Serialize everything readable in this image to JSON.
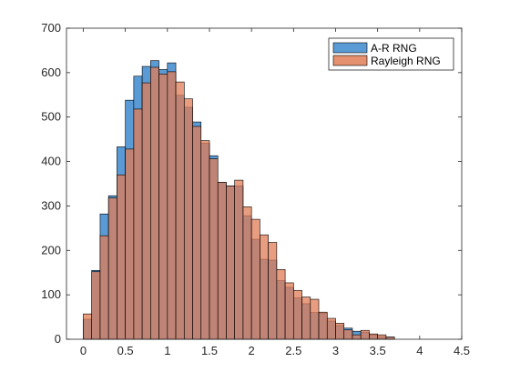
{
  "chart_data": {
    "type": "bar",
    "subtype": "overlaid-histogram",
    "title": "",
    "xlabel": "",
    "ylabel": "",
    "xlim": [
      -0.2,
      4.5
    ],
    "ylim": [
      0,
      700
    ],
    "xticks": [
      "0",
      "0.5",
      "1",
      "1.5",
      "2",
      "2.5",
      "3",
      "3.5",
      "4",
      "4.5"
    ],
    "yticks": [
      "0",
      "100",
      "200",
      "300",
      "400",
      "500",
      "600",
      "700"
    ],
    "bin_width": 0.1,
    "bin_centers": [
      0.05,
      0.15,
      0.25,
      0.35,
      0.45,
      0.55,
      0.65,
      0.75,
      0.85,
      0.95,
      1.05,
      1.15,
      1.25,
      1.35,
      1.45,
      1.55,
      1.65,
      1.75,
      1.85,
      1.95,
      2.05,
      2.15,
      2.25,
      2.35,
      2.45,
      2.55,
      2.65,
      2.75,
      2.85,
      2.95,
      3.05,
      3.15,
      3.25,
      3.35,
      3.45,
      3.55,
      3.65
    ],
    "series": [
      {
        "name": "A-R RNG",
        "color": "#5B9BD5",
        "values": [
          45,
          155,
          282,
          323,
          433,
          538,
          592,
          614,
          627,
          607,
          622,
          549,
          522,
          489,
          441,
          413,
          353,
          345,
          345,
          278,
          225,
          180,
          178,
          132,
          117,
          93,
          80,
          60,
          59,
          41,
          31,
          25,
          18,
          16,
          10,
          6,
          5
        ]
      },
      {
        "name": "Rayleigh RNG",
        "color": "#E07C55",
        "values": [
          57,
          152,
          233,
          318,
          370,
          428,
          518,
          577,
          612,
          597,
          602,
          579,
          541,
          479,
          447,
          406,
          353,
          345,
          358,
          298,
          270,
          235,
          218,
          157,
          127,
          110,
          95,
          90,
          61,
          47,
          36,
          21,
          10,
          20,
          12,
          10,
          5
        ]
      }
    ],
    "grid": false,
    "legend_position": "top-right"
  }
}
